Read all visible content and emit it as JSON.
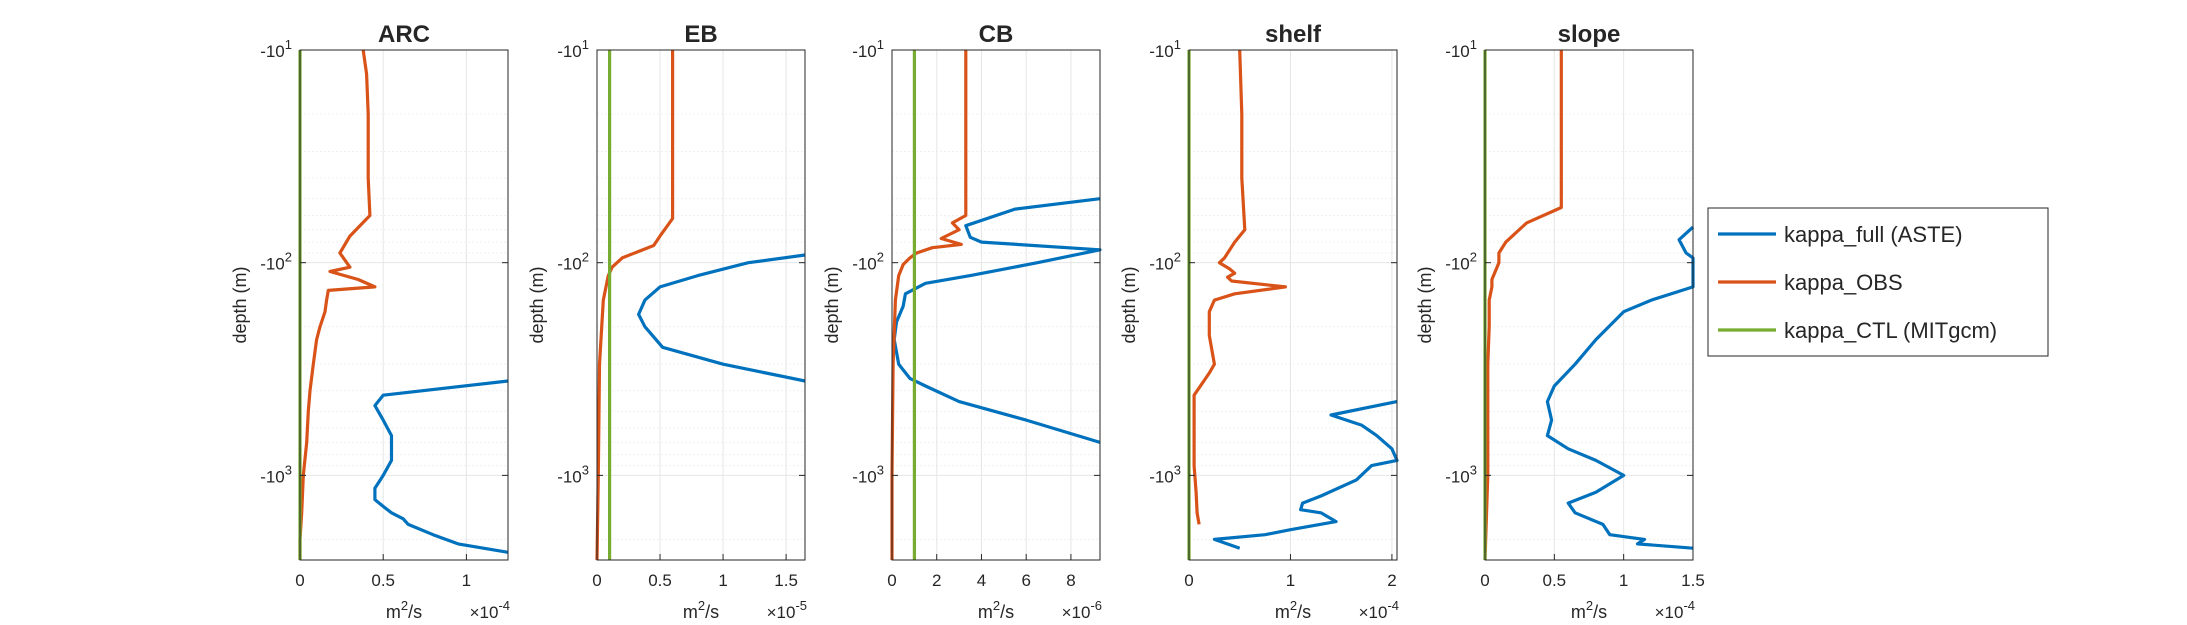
{
  "chart_data": [
    {
      "type": "line",
      "title": "ARC",
      "xlabel": "m^2/s",
      "xlabel_base": "m",
      "xlabel_exp": "2",
      "xlabel_unit_tail": "/s",
      "x_exponent_base": "×10",
      "x_exponent_power": "-4",
      "ylabel": "depth (m)",
      "xlim": [
        0,
        1.25
      ],
      "x_ticks": [
        0,
        0.5,
        1
      ],
      "x_tick_labels": [
        "0",
        "0.5",
        "1"
      ],
      "y_scale": "log",
      "y_range_abs": [
        10,
        2500
      ],
      "y_ticks": [
        10,
        100,
        1000
      ],
      "y_tick_base": "-10",
      "y_tick_powers": [
        "1",
        "2",
        "3"
      ],
      "grid": true,
      "series": [
        {
          "name": "kappa_full (ASTE)",
          "color": "#0072BD",
          "points": [
            [
              1.25,
              360
            ],
            [
              0.5,
              420
            ],
            [
              0.45,
              470
            ],
            [
              0.5,
              550
            ],
            [
              0.55,
              650
            ],
            [
              0.55,
              850
            ],
            [
              0.5,
              1000
            ],
            [
              0.45,
              1150
            ],
            [
              0.45,
              1300
            ],
            [
              0.5,
              1400
            ],
            [
              0.55,
              1500
            ],
            [
              0.62,
              1600
            ],
            [
              0.65,
              1700
            ],
            [
              0.8,
              1900
            ],
            [
              0.95,
              2100
            ],
            [
              1.25,
              2300
            ]
          ]
        },
        {
          "name": "kappa_OBS",
          "color": "#D95319",
          "points": [
            [
              0.38,
              10
            ],
            [
              0.4,
              13
            ],
            [
              0.41,
              20
            ],
            [
              0.41,
              40
            ],
            [
              0.42,
              60
            ],
            [
              0.3,
              75
            ],
            [
              0.24,
              90
            ],
            [
              0.3,
              105
            ],
            [
              0.18,
              110
            ],
            [
              0.35,
              120
            ],
            [
              0.45,
              130
            ],
            [
              0.17,
              135
            ],
            [
              0.16,
              150
            ],
            [
              0.15,
              170
            ],
            [
              0.12,
              200
            ],
            [
              0.1,
              230
            ],
            [
              0.08,
              300
            ],
            [
              0.06,
              400
            ],
            [
              0.05,
              500
            ],
            [
              0.04,
              700
            ],
            [
              0.02,
              1000
            ],
            [
              0.01,
              1500
            ],
            [
              0.0,
              2000
            ],
            [
              0.0,
              2500
            ]
          ]
        },
        {
          "name": "kappa_CTL (MITgcm)",
          "color": "#77AC30",
          "points": [
            [
              0.0,
              10
            ],
            [
              0.0,
              2500
            ]
          ]
        }
      ]
    },
    {
      "type": "line",
      "title": "EB",
      "xlabel": "m^2/s",
      "xlabel_base": "m",
      "xlabel_exp": "2",
      "xlabel_unit_tail": "/s",
      "x_exponent_base": "×10",
      "x_exponent_power": "-5",
      "ylabel": "depth (m)",
      "xlim": [
        0,
        1.65
      ],
      "x_ticks": [
        0,
        0.5,
        1,
        1.5
      ],
      "x_tick_labels": [
        "0",
        "0.5",
        "1",
        "1.5"
      ],
      "y_scale": "log",
      "y_range_abs": [
        10,
        2500
      ],
      "y_ticks": [
        10,
        100,
        1000
      ],
      "y_tick_base": "-10",
      "y_tick_powers": [
        "1",
        "2",
        "3"
      ],
      "grid": true,
      "series": [
        {
          "name": "kappa_full (ASTE)",
          "color": "#0072BD",
          "points": [
            [
              1.65,
              92
            ],
            [
              1.2,
              100
            ],
            [
              0.8,
              115
            ],
            [
              0.5,
              130
            ],
            [
              0.38,
              150
            ],
            [
              0.33,
              175
            ],
            [
              0.38,
              200
            ],
            [
              0.52,
              250
            ],
            [
              1.0,
              300
            ],
            [
              1.65,
              360
            ]
          ]
        },
        {
          "name": "kappa_OBS",
          "color": "#D95319",
          "points": [
            [
              0.6,
              10
            ],
            [
              0.6,
              20
            ],
            [
              0.6,
              40
            ],
            [
              0.6,
              62
            ],
            [
              0.5,
              75
            ],
            [
              0.45,
              83
            ],
            [
              0.2,
              95
            ],
            [
              0.12,
              105
            ],
            [
              0.09,
              115
            ],
            [
              0.05,
              150
            ],
            [
              0.02,
              300
            ],
            [
              0.01,
              1000
            ],
            [
              0.0,
              2500
            ]
          ]
        },
        {
          "name": "kappa_CTL (MITgcm)",
          "color": "#77AC30",
          "points": [
            [
              0.1,
              10
            ],
            [
              0.1,
              2500
            ]
          ]
        }
      ]
    },
    {
      "type": "line",
      "title": "CB",
      "xlabel": "m^2/s",
      "xlabel_base": "m",
      "xlabel_exp": "2",
      "xlabel_unit_tail": "/s",
      "x_exponent_base": "×10",
      "x_exponent_power": "-6",
      "ylabel": "depth (m)",
      "xlim": [
        0,
        9.3
      ],
      "x_ticks": [
        0,
        2,
        4,
        6,
        8
      ],
      "x_tick_labels": [
        "0",
        "2",
        "4",
        "6",
        "8"
      ],
      "y_scale": "log",
      "y_range_abs": [
        10,
        2500
      ],
      "y_ticks": [
        10,
        100,
        1000
      ],
      "y_tick_base": "-10",
      "y_tick_powers": [
        "1",
        "2",
        "3"
      ],
      "grid": true,
      "series": [
        {
          "name": "kappa_full (ASTE)",
          "color": "#0072BD",
          "points": [
            [
              9.3,
              50
            ],
            [
              5.5,
              56
            ],
            [
              3.3,
              67
            ],
            [
              3.5,
              76
            ],
            [
              4.0,
              80
            ],
            [
              9.3,
              87
            ],
            [
              6.5,
              100
            ],
            [
              3.5,
              115
            ],
            [
              1.5,
              125
            ],
            [
              0.6,
              140
            ],
            [
              0.5,
              160
            ],
            [
              0.2,
              190
            ],
            [
              0.1,
              230
            ],
            [
              0.3,
              300
            ],
            [
              0.8,
              350
            ],
            [
              1.5,
              380
            ],
            [
              3.0,
              450
            ],
            [
              6.0,
              550
            ],
            [
              9.3,
              700
            ]
          ]
        },
        {
          "name": "kappa_OBS",
          "color": "#D95319",
          "points": [
            [
              3.3,
              10
            ],
            [
              3.3,
              20
            ],
            [
              3.3,
              35
            ],
            [
              3.3,
              60
            ],
            [
              2.7,
              65
            ],
            [
              3.0,
              70
            ],
            [
              2.2,
              77
            ],
            [
              3.1,
              82
            ],
            [
              1.8,
              85
            ],
            [
              1.1,
              90
            ],
            [
              0.8,
              95
            ],
            [
              0.5,
              102
            ],
            [
              0.3,
              115
            ],
            [
              0.15,
              150
            ],
            [
              0.05,
              300
            ],
            [
              0.0,
              1000
            ],
            [
              0.0,
              2500
            ]
          ]
        },
        {
          "name": "kappa_CTL (MITgcm)",
          "color": "#77AC30",
          "points": [
            [
              1.0,
              10
            ],
            [
              1.0,
              2500
            ]
          ]
        }
      ]
    },
    {
      "type": "line",
      "title": "shelf",
      "xlabel": "m^2/s",
      "xlabel_base": "m",
      "xlabel_exp": "2",
      "xlabel_unit_tail": "/s",
      "x_exponent_base": "×10",
      "x_exponent_power": "-4",
      "ylabel": "depth (m)",
      "xlim": [
        0,
        2.05
      ],
      "x_ticks": [
        0,
        1,
        2
      ],
      "x_tick_labels": [
        "0",
        "1",
        "2"
      ],
      "y_scale": "log",
      "y_range_abs": [
        10,
        2500
      ],
      "y_ticks": [
        10,
        100,
        1000
      ],
      "y_tick_base": "-10",
      "y_tick_powers": [
        "1",
        "2",
        "3"
      ],
      "grid": true,
      "series": [
        {
          "name": "kappa_full (ASTE)",
          "color": "#0072BD",
          "points": [
            [
              2.05,
              450
            ],
            [
              1.4,
              520
            ],
            [
              1.7,
              580
            ],
            [
              1.85,
              650
            ],
            [
              2.0,
              750
            ],
            [
              2.05,
              850
            ],
            [
              1.8,
              900
            ],
            [
              1.65,
              1050
            ],
            [
              1.3,
              1250
            ],
            [
              1.12,
              1350
            ],
            [
              1.1,
              1450
            ],
            [
              1.3,
              1500
            ],
            [
              1.45,
              1650
            ],
            [
              1.0,
              1800
            ],
            [
              0.75,
              1900
            ],
            [
              0.25,
              2000
            ],
            [
              0.5,
              2200
            ]
          ]
        },
        {
          "name": "kappa_OBS",
          "color": "#D95319",
          "points": [
            [
              0.5,
              10
            ],
            [
              0.52,
              20
            ],
            [
              0.52,
              40
            ],
            [
              0.55,
              70
            ],
            [
              0.45,
              80
            ],
            [
              0.35,
              95
            ],
            [
              0.3,
              100
            ],
            [
              0.4,
              107
            ],
            [
              0.45,
              112
            ],
            [
              0.38,
              117
            ],
            [
              0.42,
              122
            ],
            [
              0.95,
              130
            ],
            [
              0.45,
              140
            ],
            [
              0.25,
              150
            ],
            [
              0.2,
              170
            ],
            [
              0.2,
              220
            ],
            [
              0.25,
              300
            ],
            [
              0.2,
              330
            ],
            [
              0.05,
              420
            ],
            [
              0.05,
              600
            ],
            [
              0.05,
              900
            ],
            [
              0.07,
              1200
            ],
            [
              0.08,
              1500
            ],
            [
              0.1,
              1700
            ]
          ]
        },
        {
          "name": "kappa_CTL (MITgcm)",
          "color": "#77AC30",
          "points": [
            [
              0.0,
              10
            ],
            [
              0.0,
              2500
            ]
          ]
        }
      ]
    },
    {
      "type": "line",
      "title": "slope",
      "xlabel": "m^2/s",
      "xlabel_base": "m",
      "xlabel_exp": "2",
      "xlabel_unit_tail": "/s",
      "x_exponent_base": "×10",
      "x_exponent_power": "-4",
      "ylabel": "depth (m)",
      "xlim": [
        0,
        1.5
      ],
      "x_ticks": [
        0,
        0.5,
        1,
        1.5
      ],
      "x_tick_labels": [
        "0",
        "0.5",
        "1",
        "1.5"
      ],
      "y_scale": "log",
      "y_range_abs": [
        10,
        2500
      ],
      "y_ticks": [
        10,
        100,
        1000
      ],
      "y_tick_base": "-10",
      "y_tick_powers": [
        "1",
        "2",
        "3"
      ],
      "grid": true,
      "series": [
        {
          "name": "kappa_full (ASTE)",
          "color": "#0072BD",
          "points": [
            [
              1.5,
              68
            ],
            [
              1.4,
              78
            ],
            [
              1.45,
              90
            ],
            [
              1.5,
              95
            ],
            [
              1.5,
              130
            ],
            [
              1.2,
              150
            ],
            [
              1.0,
              170
            ],
            [
              0.8,
              230
            ],
            [
              0.65,
              300
            ],
            [
              0.5,
              380
            ],
            [
              0.45,
              450
            ],
            [
              0.48,
              550
            ],
            [
              0.45,
              650
            ],
            [
              0.6,
              750
            ],
            [
              0.8,
              850
            ],
            [
              1.0,
              1000
            ],
            [
              0.8,
              1200
            ],
            [
              0.6,
              1350
            ],
            [
              0.65,
              1500
            ],
            [
              0.85,
              1700
            ],
            [
              0.9,
              1900
            ],
            [
              1.15,
              2000
            ],
            [
              1.1,
              2100
            ],
            [
              1.5,
              2200
            ]
          ]
        },
        {
          "name": "kappa_OBS",
          "color": "#D95319",
          "points": [
            [
              0.55,
              10
            ],
            [
              0.55,
              20
            ],
            [
              0.55,
              40
            ],
            [
              0.55,
              55
            ],
            [
              0.3,
              65
            ],
            [
              0.15,
              80
            ],
            [
              0.1,
              90
            ],
            [
              0.1,
              100
            ],
            [
              0.05,
              120
            ],
            [
              0.05,
              130
            ],
            [
              0.03,
              150
            ],
            [
              0.03,
              200
            ],
            [
              0.02,
              300
            ],
            [
              0.02,
              1000
            ],
            [
              0.0,
              2500
            ]
          ]
        },
        {
          "name": "kappa_CTL (MITgcm)",
          "color": "#77AC30",
          "points": [
            [
              0.0,
              10
            ],
            [
              0.0,
              2500
            ]
          ]
        }
      ]
    }
  ],
  "legend": {
    "placement": "right",
    "entries": [
      {
        "label": "kappa_full (ASTE)",
        "color": "#0072BD"
      },
      {
        "label": "kappa_OBS",
        "color": "#D95319"
      },
      {
        "label": "kappa_CTL (MITgcm)",
        "color": "#77AC30"
      }
    ]
  }
}
